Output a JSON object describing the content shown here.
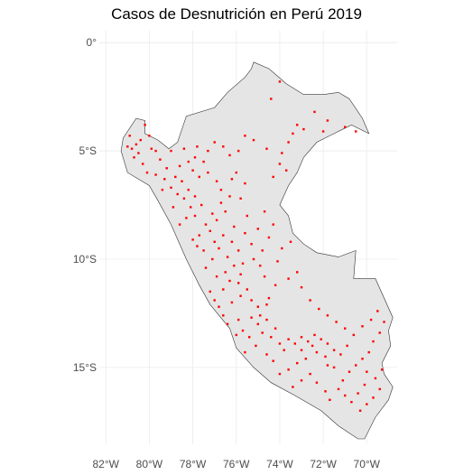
{
  "title": "Casos de Desnutrición en Perú 2019",
  "colors": {
    "background": "#ffffff",
    "grid": "#ebebeb",
    "country_fill": "#e5e5e5",
    "country_stroke": "#333333",
    "points": "#ff0000"
  },
  "axes": {
    "x_ticks": [
      {
        "value": -82,
        "label": "82°W"
      },
      {
        "value": -80,
        "label": "80°W"
      },
      {
        "value": -78,
        "label": "78°W"
      },
      {
        "value": -76,
        "label": "76°W"
      },
      {
        "value": -74,
        "label": "74°W"
      },
      {
        "value": -72,
        "label": "72°W"
      },
      {
        "value": -70,
        "label": "70°W"
      }
    ],
    "y_ticks": [
      {
        "value": 0,
        "label": "0°"
      },
      {
        "value": -5,
        "label": "5°S"
      },
      {
        "value": -10,
        "label": "10°S"
      },
      {
        "value": -15,
        "label": "15°S"
      }
    ],
    "lon_range": [
      -82,
      -68.6
    ],
    "lat_range": [
      -18.5,
      0.5
    ]
  },
  "map": {
    "region": "Perú",
    "boundary": [
      [
        -75.2,
        -0.9
      ],
      [
        -74.5,
        -1.2
      ],
      [
        -73.7,
        -1.9
      ],
      [
        -72.9,
        -2.4
      ],
      [
        -72.0,
        -2.4
      ],
      [
        -71.3,
        -2.3
      ],
      [
        -70.8,
        -2.6
      ],
      [
        -70.2,
        -3.5
      ],
      [
        -69.9,
        -4.2
      ],
      [
        -70.7,
        -3.8
      ],
      [
        -71.5,
        -4.2
      ],
      [
        -72.3,
        -4.6
      ],
      [
        -72.9,
        -5.3
      ],
      [
        -73.2,
        -6.0
      ],
      [
        -73.6,
        -6.6
      ],
      [
        -74.0,
        -7.5
      ],
      [
        -73.6,
        -8.0
      ],
      [
        -73.4,
        -8.8
      ],
      [
        -72.9,
        -9.3
      ],
      [
        -72.3,
        -9.7
      ],
      [
        -71.3,
        -9.9
      ],
      [
        -70.5,
        -9.6
      ],
      [
        -70.6,
        -10.9
      ],
      [
        -69.6,
        -10.9
      ],
      [
        -68.8,
        -12.7
      ],
      [
        -69.0,
        -13.3
      ],
      [
        -68.9,
        -14.0
      ],
      [
        -69.3,
        -14.8
      ],
      [
        -69.2,
        -15.3
      ],
      [
        -68.8,
        -15.9
      ],
      [
        -69.0,
        -16.5
      ],
      [
        -69.6,
        -17.3
      ],
      [
        -70.1,
        -18.3
      ],
      [
        -70.4,
        -18.3
      ],
      [
        -71.3,
        -17.7
      ],
      [
        -72.1,
        -17.0
      ],
      [
        -73.3,
        -16.3
      ],
      [
        -74.4,
        -15.7
      ],
      [
        -75.2,
        -15.0
      ],
      [
        -76.0,
        -14.1
      ],
      [
        -76.3,
        -13.2
      ],
      [
        -77.2,
        -12.1
      ],
      [
        -77.7,
        -11.2
      ],
      [
        -78.3,
        -10.0
      ],
      [
        -79.0,
        -8.4
      ],
      [
        -79.6,
        -7.3
      ],
      [
        -80.0,
        -6.6
      ],
      [
        -81.0,
        -6.0
      ],
      [
        -81.3,
        -5.0
      ],
      [
        -81.2,
        -4.4
      ],
      [
        -80.6,
        -3.5
      ],
      [
        -80.2,
        -3.6
      ],
      [
        -80.2,
        -4.2
      ],
      [
        -79.6,
        -4.5
      ],
      [
        -79.1,
        -4.9
      ],
      [
        -78.7,
        -4.6
      ],
      [
        -78.3,
        -3.4
      ],
      [
        -77.0,
        -3.0
      ],
      [
        -76.4,
        -2.3
      ],
      [
        -75.6,
        -1.6
      ],
      [
        -75.3,
        -1.2
      ]
    ]
  },
  "case_points": {
    "label": "Casos de Desnutrición",
    "coordinates": [
      [
        -81.0,
        -4.8
      ],
      [
        -80.8,
        -4.9
      ],
      [
        -80.6,
        -4.7
      ],
      [
        -80.5,
        -5.1
      ],
      [
        -80.7,
        -5.3
      ],
      [
        -80.2,
        -3.8
      ],
      [
        -80.0,
        -4.3
      ],
      [
        -79.9,
        -4.9
      ],
      [
        -80.3,
        -5.6
      ],
      [
        -79.7,
        -5.0
      ],
      [
        -79.5,
        -5.4
      ],
      [
        -79.2,
        -5.8
      ],
      [
        -79.3,
        -6.3
      ],
      [
        -79.0,
        -6.7
      ],
      [
        -78.8,
        -6.2
      ],
      [
        -78.6,
        -5.7
      ],
      [
        -78.5,
        -6.4
      ],
      [
        -78.7,
        -7.0
      ],
      [
        -78.4,
        -7.2
      ],
      [
        -78.2,
        -6.8
      ],
      [
        -78.1,
        -7.6
      ],
      [
        -77.9,
        -7.1
      ],
      [
        -78.0,
        -5.9
      ],
      [
        -77.7,
        -6.2
      ],
      [
        -77.5,
        -5.5
      ],
      [
        -77.3,
        -6.0
      ],
      [
        -77.6,
        -7.5
      ],
      [
        -77.9,
        -8.0
      ],
      [
        -78.3,
        -8.1
      ],
      [
        -77.4,
        -8.4
      ],
      [
        -77.7,
        -8.9
      ],
      [
        -77.2,
        -8.7
      ],
      [
        -77.0,
        -9.2
      ],
      [
        -77.5,
        -9.6
      ],
      [
        -77.1,
        -10.0
      ],
      [
        -76.8,
        -9.5
      ],
      [
        -76.6,
        -8.9
      ],
      [
        -76.9,
        -8.2
      ],
      [
        -76.5,
        -7.8
      ],
      [
        -76.3,
        -7.1
      ],
      [
        -76.7,
        -6.8
      ],
      [
        -76.2,
        -6.3
      ],
      [
        -76.0,
        -6.0
      ],
      [
        -76.9,
        -6.4
      ],
      [
        -75.6,
        -6.5
      ],
      [
        -75.8,
        -7.2
      ],
      [
        -75.5,
        -8.0
      ],
      [
        -76.1,
        -8.5
      ],
      [
        -76.2,
        -9.2
      ],
      [
        -75.9,
        -9.6
      ],
      [
        -76.4,
        -9.9
      ],
      [
        -76.1,
        -10.3
      ],
      [
        -75.7,
        -10.2
      ],
      [
        -76.5,
        -10.6
      ],
      [
        -76.3,
        -11.0
      ],
      [
        -75.9,
        -11.1
      ],
      [
        -76.6,
        -11.4
      ],
      [
        -76.9,
        -10.8
      ],
      [
        -77.2,
        -11.5
      ],
      [
        -77.0,
        -11.9
      ],
      [
        -76.8,
        -12.2
      ],
      [
        -76.6,
        -12.6
      ],
      [
        -76.2,
        -12.0
      ],
      [
        -75.8,
        -11.7
      ],
      [
        -75.5,
        -11.4
      ],
      [
        -75.3,
        -11.9
      ],
      [
        -75.0,
        -12.2
      ],
      [
        -75.3,
        -12.7
      ],
      [
        -75.0,
        -13.0
      ],
      [
        -74.6,
        -12.8
      ],
      [
        -74.8,
        -13.4
      ],
      [
        -74.4,
        -13.6
      ],
      [
        -74.2,
        -13.2
      ],
      [
        -74.0,
        -13.9
      ],
      [
        -73.8,
        -14.2
      ],
      [
        -73.6,
        -13.7
      ],
      [
        -73.3,
        -13.9
      ],
      [
        -73.0,
        -13.6
      ],
      [
        -72.7,
        -13.8
      ],
      [
        -72.4,
        -13.5
      ],
      [
        -72.1,
        -13.7
      ],
      [
        -71.8,
        -13.9
      ],
      [
        -71.5,
        -14.2
      ],
      [
        -71.9,
        -14.5
      ],
      [
        -72.3,
        -14.3
      ],
      [
        -72.8,
        -14.6
      ],
      [
        -73.2,
        -14.8
      ],
      [
        -73.6,
        -15.1
      ],
      [
        -74.0,
        -15.3
      ],
      [
        -74.3,
        -14.7
      ],
      [
        -74.6,
        -14.4
      ],
      [
        -75.1,
        -14.0
      ],
      [
        -75.4,
        -13.6
      ],
      [
        -75.7,
        -13.3
      ],
      [
        -74.9,
        -12.6
      ],
      [
        -74.5,
        -11.8
      ],
      [
        -74.2,
        -11.2
      ],
      [
        -74.7,
        -10.8
      ],
      [
        -74.9,
        -10.3
      ],
      [
        -75.2,
        -10.0
      ],
      [
        -74.8,
        -9.6
      ],
      [
        -74.5,
        -9.0
      ],
      [
        -74.3,
        -8.4
      ],
      [
        -74.7,
        -7.8
      ],
      [
        -75.0,
        -8.6
      ],
      [
        -75.3,
        -9.3
      ],
      [
        -75.6,
        -8.8
      ],
      [
        -73.4,
        -4.2
      ],
      [
        -73.2,
        -3.8
      ],
      [
        -72.9,
        -4.0
      ],
      [
        -73.6,
        -4.6
      ],
      [
        -73.9,
        -5.1
      ],
      [
        -74.6,
        -4.9
      ],
      [
        -75.2,
        -4.5
      ],
      [
        -75.6,
        -4.3
      ],
      [
        -75.9,
        -5.0
      ],
      [
        -76.3,
        -5.2
      ],
      [
        -76.6,
        -4.8
      ],
      [
        -77.0,
        -4.6
      ],
      [
        -77.3,
        -5.0
      ],
      [
        -77.8,
        -4.8
      ],
      [
        -77.9,
        -5.3
      ],
      [
        -78.2,
        -5.5
      ],
      [
        -74.0,
        -5.6
      ],
      [
        -73.7,
        -5.9
      ],
      [
        -74.3,
        -6.2
      ],
      [
        -73.2,
        -10.6
      ],
      [
        -73.6,
        -10.9
      ],
      [
        -73.0,
        -11.3
      ],
      [
        -72.6,
        -11.9
      ],
      [
        -72.2,
        -12.3
      ],
      [
        -71.8,
        -12.6
      ],
      [
        -71.4,
        -12.9
      ],
      [
        -71.0,
        -13.2
      ],
      [
        -70.6,
        -13.5
      ],
      [
        -70.2,
        -13.1
      ],
      [
        -69.8,
        -12.8
      ],
      [
        -69.5,
        -12.4
      ],
      [
        -69.2,
        -12.9
      ],
      [
        -69.4,
        -13.4
      ],
      [
        -69.7,
        -13.8
      ],
      [
        -69.9,
        -14.3
      ],
      [
        -70.2,
        -14.6
      ],
      [
        -70.5,
        -14.9
      ],
      [
        -70.0,
        -15.2
      ],
      [
        -69.6,
        -15.5
      ],
      [
        -69.4,
        -16.0
      ],
      [
        -69.7,
        -16.4
      ],
      [
        -70.0,
        -16.7
      ],
      [
        -70.3,
        -17.0
      ],
      [
        -70.7,
        -16.6
      ],
      [
        -71.0,
        -16.3
      ],
      [
        -71.3,
        -16.0
      ],
      [
        -71.7,
        -16.5
      ],
      [
        -71.9,
        -16.1
      ],
      [
        -72.3,
        -15.7
      ],
      [
        -72.6,
        -15.3
      ],
      [
        -73.0,
        -15.6
      ],
      [
        -73.4,
        -15.9
      ],
      [
        -71.1,
        -15.6
      ],
      [
        -70.8,
        -15.2
      ],
      [
        -71.5,
        -15.0
      ],
      [
        -71.8,
        -14.9
      ],
      [
        -72.5,
        -14.0
      ],
      [
        -73.0,
        -14.2
      ],
      [
        -70.9,
        -14.0
      ],
      [
        -71.2,
        -14.4
      ],
      [
        -70.4,
        -16.2
      ],
      [
        -70.1,
        -15.8
      ],
      [
        -69.3,
        -15.1
      ],
      [
        -76.0,
        -13.5
      ],
      [
        -75.6,
        -14.3
      ],
      [
        -75.9,
        -12.8
      ],
      [
        -76.4,
        -13.0
      ],
      [
        -77.4,
        -10.4
      ],
      [
        -77.8,
        -9.4
      ],
      [
        -78.6,
        -8.4
      ],
      [
        -78.9,
        -7.6
      ],
      [
        -79.4,
        -6.8
      ],
      [
        -79.7,
        -6.1
      ],
      [
        -80.1,
        -6.0
      ],
      [
        -80.4,
        -4.5
      ],
      [
        -80.9,
        -4.3
      ],
      [
        -79.0,
        -5.0
      ],
      [
        -78.4,
        -4.9
      ],
      [
        -74.0,
        -1.8
      ],
      [
        -74.4,
        -2.6
      ],
      [
        -72.4,
        -3.2
      ],
      [
        -71.8,
        -3.6
      ],
      [
        -72.0,
        -4.1
      ],
      [
        -70.5,
        -4.1
      ],
      [
        -71.0,
        -3.9
      ],
      [
        -74.1,
        -10.1
      ],
      [
        -73.9,
        -9.5
      ],
      [
        -73.5,
        -9.2
      ],
      [
        -74.6,
        -12.1
      ],
      [
        -75.8,
        -10.7
      ],
      [
        -76.7,
        -7.4
      ],
      [
        -77.1,
        -7.9
      ],
      [
        -78.0,
        -9.1
      ]
    ]
  }
}
